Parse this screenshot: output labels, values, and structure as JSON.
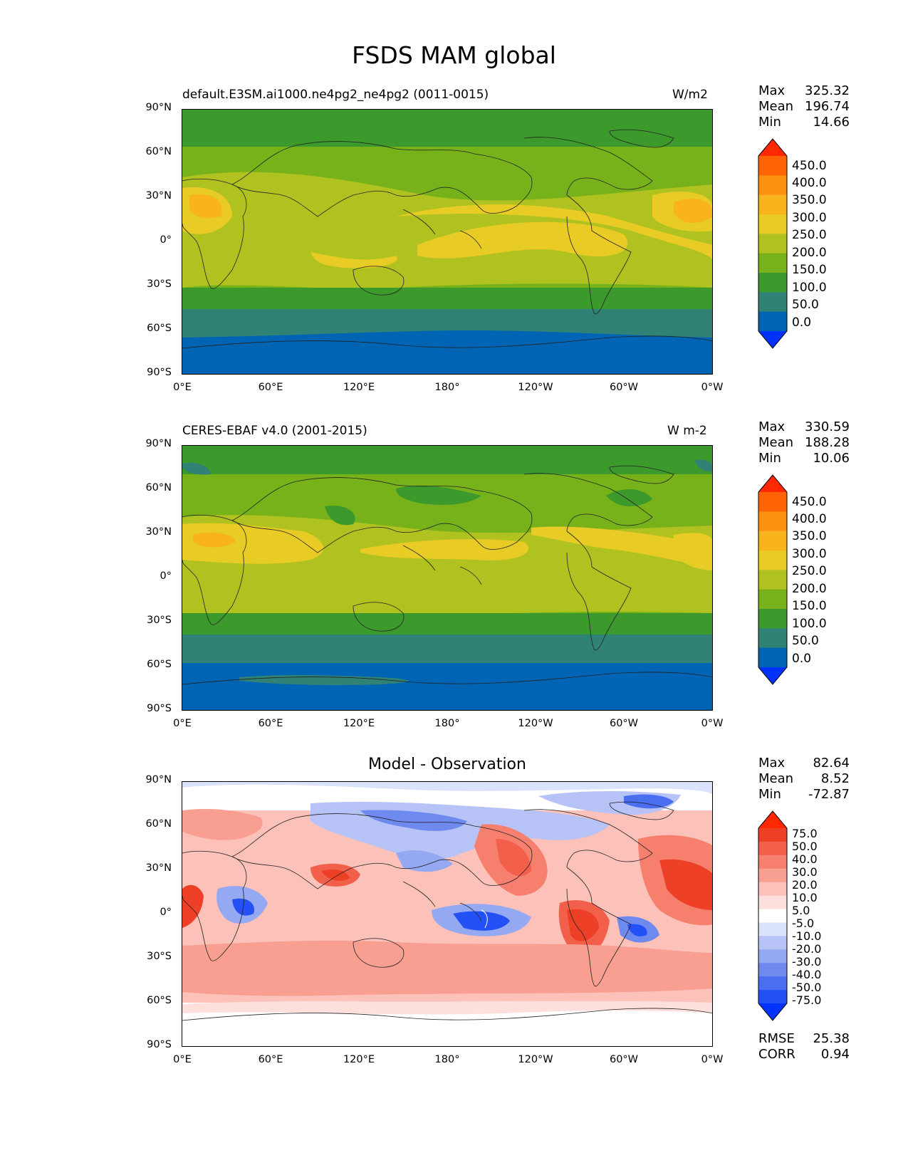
{
  "title": "FSDS MAM global",
  "lat_labels": [
    "90°N",
    "60°N",
    "30°N",
    "0°",
    "30°S",
    "60°S",
    "90°S"
  ],
  "lon_labels": [
    "0°E",
    "60°E",
    "120°E",
    "180°",
    "120°W",
    "60°W",
    "0°W"
  ],
  "panels": [
    {
      "left_title": "default.E3SM.ai1000.ne4pg2_ne4pg2 (0011-0015)",
      "units": "W/m2",
      "stats": [
        [
          "Max",
          "325.32"
        ],
        [
          "Mean",
          "196.74"
        ],
        [
          "Min",
          "14.66"
        ]
      ],
      "colorbar": {
        "ticks": [
          "450.0",
          "400.0",
          "350.0",
          "300.0",
          "250.0",
          "200.0",
          "150.0",
          "100.0",
          "50.0",
          "0.0"
        ],
        "colors": [
          "#0032ff",
          "#0064b4",
          "#2f8275",
          "#3c9a2d",
          "#78b21a",
          "#b0c21f",
          "#e8cb25",
          "#f9b31d",
          "#fc9010",
          "#fe6405",
          "#ff2800"
        ]
      }
    },
    {
      "left_title": "CERES-EBAF v4.0 (2001-2015)",
      "units": "W m-2",
      "stats": [
        [
          "Max",
          "330.59"
        ],
        [
          "Mean",
          "188.28"
        ],
        [
          "Min",
          "10.06"
        ]
      ],
      "colorbar": {
        "ticks": [
          "450.0",
          "400.0",
          "350.0",
          "300.0",
          "250.0",
          "200.0",
          "150.0",
          "100.0",
          "50.0",
          "0.0"
        ],
        "colors": [
          "#0032ff",
          "#0064b4",
          "#2f8275",
          "#3c9a2d",
          "#78b21a",
          "#b0c21f",
          "#e8cb25",
          "#f9b31d",
          "#fc9010",
          "#fe6405",
          "#ff2800"
        ]
      }
    },
    {
      "center_title": "Model - Observation",
      "stats": [
        [
          "Max",
          "82.64"
        ],
        [
          "Mean",
          "8.52"
        ],
        [
          "Min",
          "-72.87"
        ]
      ],
      "colorbar": {
        "ticks": [
          "75.0",
          "50.0",
          "40.0",
          "30.0",
          "20.0",
          "10.0",
          "5.0",
          "-5.0",
          "-10.0",
          "-20.0",
          "-30.0",
          "-40.0",
          "-50.0",
          "-75.0"
        ],
        "colors": [
          "#0033ff",
          "#2451f5",
          "#4a6ef0",
          "#6f8aee",
          "#95a8f2",
          "#b7c3f6",
          "#dbe2fb",
          "#ffffff",
          "#fde0dc",
          "#fcc1b8",
          "#f99f92",
          "#f67f6e",
          "#f2604b",
          "#ee4027",
          "#ff2800"
        ]
      },
      "bottom_stats": [
        [
          "RMSE",
          "25.38"
        ],
        [
          "CORR",
          "0.94"
        ]
      ]
    }
  ]
}
